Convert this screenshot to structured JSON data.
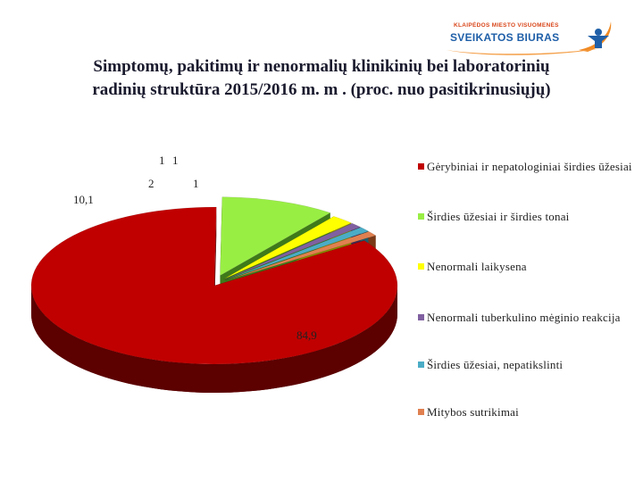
{
  "logo": {
    "line1": "KLAIPĖDOS MIESTO VISUOMENĖS",
    "line2": "SVEIKATOS BIURAS"
  },
  "title": {
    "line1": "Simptomų, pakitimų ir nenormalių klinikinių bei laboratorinių",
    "line2": "radinių struktūra 2015/2016 m. m . (proc. nuo pasitikrinusiųjų)"
  },
  "chart_data": {
    "type": "pie",
    "three_d": true,
    "legend_position": "right",
    "categories": [
      "Gėrybiniai ir nepatologiniai širdies ūžesiai",
      "Širdies ūžesiai ir širdies tonai",
      "Nenormali laikysena",
      "Nenormali tuberkulino mėginio reakcija",
      "Širdies ūžesiai, nepatikslinti",
      "Mitybos sutrikimai"
    ],
    "values": [
      84.9,
      10.1,
      2,
      1,
      1,
      1
    ],
    "data_labels": [
      "84,9",
      "10,1",
      "2",
      "1",
      "1",
      "1"
    ],
    "colors": [
      "#c00000",
      "#99ee44",
      "#ffff00",
      "#8060a0",
      "#4bacc6",
      "#e08050"
    ],
    "side_colors": [
      "#5c0000",
      "#3f7a1a",
      "#8a8a00",
      "#3d2a55",
      "#1f5a6a",
      "#7a3a18"
    ]
  }
}
